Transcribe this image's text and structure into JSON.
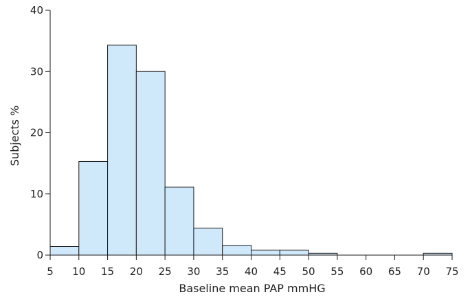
{
  "chart_data": {
    "type": "bar",
    "subtype": "histogram",
    "xlabel": "Baseline mean PAP mmHG",
    "ylabel": "Subjects %",
    "xlim": [
      5,
      75
    ],
    "ylim": [
      0,
      40
    ],
    "x_ticks": [
      "5",
      "10",
      "15",
      "20",
      "25",
      "30",
      "35",
      "40",
      "45",
      "50",
      "55",
      "60",
      "65",
      "70",
      "75"
    ],
    "y_ticks": [
      "0",
      "10",
      "20",
      "30",
      "40"
    ],
    "bins": [
      {
        "start": 5,
        "end": 10,
        "value": 1.4
      },
      {
        "start": 10,
        "end": 15,
        "value": 15.3
      },
      {
        "start": 15,
        "end": 20,
        "value": 34.3
      },
      {
        "start": 20,
        "end": 25,
        "value": 30.0
      },
      {
        "start": 25,
        "end": 30,
        "value": 11.1
      },
      {
        "start": 30,
        "end": 35,
        "value": 4.4
      },
      {
        "start": 35,
        "end": 40,
        "value": 1.6
      },
      {
        "start": 40,
        "end": 45,
        "value": 0.8
      },
      {
        "start": 45,
        "end": 50,
        "value": 0.8
      },
      {
        "start": 50,
        "end": 55,
        "value": 0.3
      },
      {
        "start": 55,
        "end": 60,
        "value": 0
      },
      {
        "start": 60,
        "end": 65,
        "value": 0
      },
      {
        "start": 65,
        "end": 70,
        "value": 0
      },
      {
        "start": 70,
        "end": 75,
        "value": 0.3
      }
    ],
    "colors": {
      "bar_fill": "#cfe8fa",
      "bar_stroke": "#1a1a1a"
    },
    "grid": false,
    "legend": "none"
  }
}
